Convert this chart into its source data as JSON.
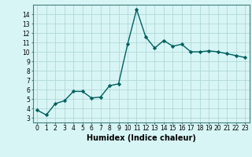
{
  "x": [
    0,
    1,
    2,
    3,
    4,
    5,
    6,
    7,
    8,
    9,
    10,
    11,
    12,
    13,
    14,
    15,
    16,
    17,
    18,
    19,
    20,
    21,
    22,
    23
  ],
  "y": [
    3.8,
    3.3,
    4.5,
    4.8,
    5.8,
    5.8,
    5.1,
    5.2,
    6.4,
    6.6,
    10.8,
    14.5,
    11.6,
    10.4,
    11.2,
    10.6,
    10.8,
    10.0,
    10.0,
    10.1,
    10.0,
    9.8,
    9.6,
    9.4
  ],
  "line_color": "#006060",
  "marker": "D",
  "marker_size": 2.2,
  "bg_color": "#d8f5f5",
  "grid_color": "#b0d8d8",
  "xlabel": "Humidex (Indice chaleur)",
  "xlabel_fontsize": 7,
  "xlim": [
    -0.5,
    23.5
  ],
  "ylim": [
    2.5,
    15.0
  ],
  "yticks": [
    3,
    4,
    5,
    6,
    7,
    8,
    9,
    10,
    11,
    12,
    13,
    14
  ],
  "xticks": [
    0,
    1,
    2,
    3,
    4,
    5,
    6,
    7,
    8,
    9,
    10,
    11,
    12,
    13,
    14,
    15,
    16,
    17,
    18,
    19,
    20,
    21,
    22,
    23
  ],
  "tick_label_fontsize": 5.5,
  "line_width": 1.0,
  "spine_color": "#408080"
}
